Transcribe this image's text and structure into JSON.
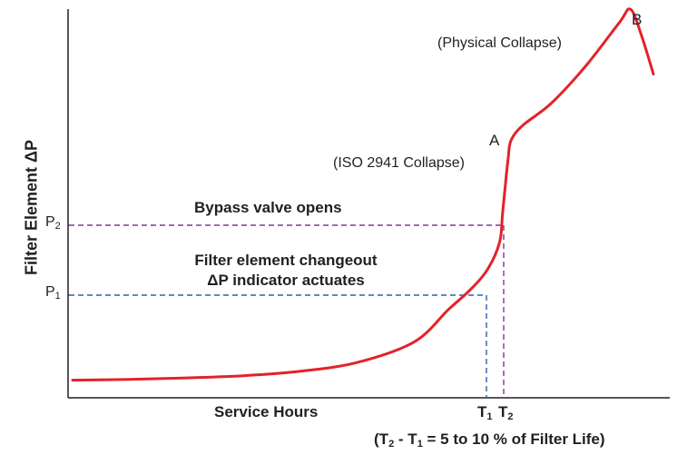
{
  "chart_data": {
    "type": "line",
    "title": "",
    "ylabel": "Filter Element ΔP",
    "xlabel": "Service Hours",
    "x_ticks": [
      {
        "main": "T",
        "sub": "1"
      },
      {
        "main": "T",
        "sub": "2"
      }
    ],
    "y_ticks": [
      {
        "main": "P",
        "sub": "2"
      },
      {
        "main": "P",
        "sub": "1"
      }
    ],
    "series": [
      {
        "color": "#e32229",
        "x": [
          0,
          10,
          20,
          30,
          40,
          50,
          60,
          66,
          70,
          73,
          75,
          75.5,
          76,
          76.5,
          77,
          79,
          84,
          90,
          96,
          98,
          100,
          102
        ],
        "y": [
          1.2,
          1.25,
          1.35,
          1.5,
          1.8,
          2.4,
          3.8,
          6.0,
          7.4,
          8.8,
          10.6,
          12.5,
          14.5,
          16.3,
          17.5,
          18.5,
          20.0,
          22.5,
          25.5,
          26.4,
          24.5,
          22.0
        ]
      }
    ],
    "reference_lines": [
      {
        "label": "P1 / T1",
        "color": "#2e5fae",
        "style": "dashed"
      },
      {
        "label": "P2 / T2",
        "color": "#7a3b8f",
        "style": "dashed"
      }
    ],
    "annotations": {
      "bypass": "Bypass valve opens",
      "changeout_line1": "Filter element changeout",
      "changeout_line2": "ΔP indicator actuates",
      "point_a": "A",
      "point_a_desc": "(ISO 2941 Collapse)",
      "point_b": "B",
      "point_b_desc": "(Physical Collapse)",
      "footnote": {
        "open": "(",
        "t2": "T",
        "t2_sub": "2",
        "dash": " - ",
        "t1": "T",
        "t1_sub": "1",
        "rest": " = 5 to 10 % of Filter Life)"
      }
    },
    "grid": false,
    "legend": "none"
  }
}
